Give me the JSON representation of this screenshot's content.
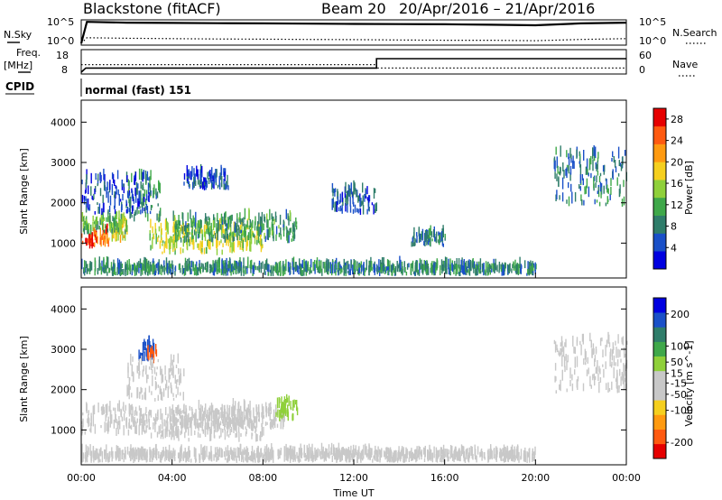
{
  "header": {
    "station": "Blackstone (fitACF)",
    "beam": "Beam 20",
    "dates": "20/Apr/2016 – 21/Apr/2016"
  },
  "top_panel": {
    "left_label": "N.Sky",
    "left_ticks": [
      "10^5",
      "10^0"
    ],
    "right_label": "N.Search",
    "right_ticks": [
      "10^5",
      "10^0"
    ]
  },
  "freq_panel": {
    "left_label_1": "Freq.",
    "left_label_2": "[MHz]",
    "left_ticks": [
      "18",
      "8"
    ],
    "right_label": "Nave",
    "right_ticks": [
      "60",
      "0"
    ],
    "cpid_label": "CPID",
    "cpid_value": "normal (fast) 151"
  },
  "colors": {
    "power": [
      "#0000e0",
      "#1a50c8",
      "#2f7d6a",
      "#3fa84a",
      "#8fd03a",
      "#f5cf1e",
      "#ff9a10",
      "#ff5a10",
      "#e60000"
    ],
    "velocity": [
      "#e60000",
      "#ff5a10",
      "#ff9a10",
      "#f5cf1e",
      "#c8c8c8",
      "#c8c8c8",
      "#8fd03a",
      "#3fa84a",
      "#2f7d6a",
      "#1a50c8",
      "#0000e0"
    ]
  },
  "chart_data": [
    {
      "type": "line",
      "panel": "noise",
      "series": [
        {
          "name": "N.Sky",
          "x": [
            0,
            0.25,
            2,
            4,
            6,
            8,
            10,
            12,
            14,
            16,
            18,
            20,
            22,
            24
          ],
          "values": [
            1,
            90000,
            60000,
            50000,
            45000,
            40000,
            35000,
            30000,
            28000,
            25000,
            20000,
            15000,
            40000,
            60000
          ]
        },
        {
          "name": "N.Search",
          "x": [
            0,
            0.25,
            2,
            4,
            6,
            8,
            10,
            12,
            14,
            16,
            18,
            20,
            22,
            24
          ],
          "values": [
            1,
            20,
            15,
            12,
            10,
            9,
            8,
            7,
            6,
            5,
            5,
            4,
            8,
            12
          ]
        }
      ],
      "ylim_left": [
        "10^0",
        "10^5"
      ],
      "ylim_right": [
        "10^0",
        "10^5"
      ]
    },
    {
      "type": "line",
      "panel": "frequency",
      "series": [
        {
          "name": "Freq.",
          "x": [
            0,
            0.2,
            13,
            13,
            24
          ],
          "values": [
            8,
            10,
            10,
            14.5,
            14.5
          ]
        },
        {
          "name": "Nave",
          "x": [
            0,
            13,
            13,
            24
          ],
          "values": [
            22,
            22,
            12,
            12
          ]
        }
      ],
      "ylim_left": [
        8,
        18
      ],
      "ylim_right": [
        0,
        60
      ]
    },
    {
      "type": "heatmap",
      "panel": "power",
      "ylabel": "Slant Range [km]",
      "colorbar_label": "Power [dB]",
      "colorbar_ticks": [
        4,
        8,
        12,
        16,
        20,
        24,
        28
      ],
      "clim": [
        0,
        30
      ],
      "xlim": [
        0,
        24
      ],
      "ylim": [
        180,
        4500
      ],
      "yticks": [
        1000,
        2000,
        3000,
        4000
      ],
      "regions": [
        {
          "t0": 0,
          "t1": 0.5,
          "r0": 850,
          "r1": 1150,
          "v": 28
        },
        {
          "t0": 0.5,
          "t1": 1.2,
          "r0": 900,
          "r1": 1250,
          "v": 24
        },
        {
          "t0": 1.2,
          "t1": 2.0,
          "r0": 1000,
          "r1": 1500,
          "v": 18
        },
        {
          "t0": 0,
          "t1": 2.0,
          "r0": 1200,
          "r1": 1600,
          "v": 12
        },
        {
          "t0": 2.0,
          "t1": 3.5,
          "r0": 1500,
          "r1": 2600,
          "v": 10
        },
        {
          "t0": 3.0,
          "t1": 8.0,
          "r0": 700,
          "r1": 1400,
          "v": 16
        },
        {
          "t0": 4.0,
          "t1": 9.5,
          "r0": 1000,
          "r1": 1600,
          "v": 10
        },
        {
          "t0": 0,
          "t1": 3.0,
          "r0": 1700,
          "r1": 2600,
          "v": 5
        },
        {
          "t0": 4.5,
          "t1": 6.5,
          "r0": 2300,
          "r1": 2700,
          "v": 5
        },
        {
          "t0": 20.8,
          "t1": 24,
          "r0": 1900,
          "r1": 3200,
          "v": 8
        },
        {
          "t0": 11.0,
          "t1": 13.0,
          "r0": 1700,
          "r1": 2300,
          "v": 6
        },
        {
          "t0": 14.5,
          "t1": 16.0,
          "r0": 900,
          "r1": 1200,
          "v": 8
        },
        {
          "t0": 0,
          "t1": 20.0,
          "r0": 180,
          "r1": 400,
          "v": 9
        }
      ]
    },
    {
      "type": "heatmap",
      "panel": "velocity",
      "ylabel": "Slant Range [km]",
      "xlabel": "Time UT",
      "xticks": [
        "00:00",
        "04:00",
        "08:00",
        "12:00",
        "16:00",
        "20:00",
        "00:00"
      ],
      "colorbar_label": "Velocity [m s^-1]",
      "colorbar_ticks": [
        -200,
        -100,
        -50,
        -15,
        15,
        50,
        100,
        200
      ],
      "clim": [
        -250,
        250
      ],
      "xlim": [
        0,
        24
      ],
      "ylim": [
        180,
        4500
      ],
      "yticks": [
        1000,
        2000,
        3000,
        4000
      ],
      "regions": [
        {
          "t0": 0,
          "t1": 3.0,
          "r0": 850,
          "r1": 1500,
          "v": 0
        },
        {
          "t0": 3.0,
          "t1": 8.0,
          "r0": 700,
          "r1": 1400,
          "v": -60
        },
        {
          "t0": 4.0,
          "t1": 9.0,
          "r0": 1000,
          "r1": 1500,
          "v": 0
        },
        {
          "t0": 8.5,
          "t1": 9.5,
          "r0": 1200,
          "r1": 1700,
          "v": 60
        },
        {
          "t0": 2.5,
          "t1": 3.2,
          "r0": 2700,
          "r1": 3100,
          "v": 200
        },
        {
          "t0": 2.9,
          "t1": 3.3,
          "r0": 2600,
          "r1": 2900,
          "v": -200
        },
        {
          "t0": 2.0,
          "t1": 4.5,
          "r0": 1700,
          "r1": 2700,
          "v": -30
        },
        {
          "t0": 20.8,
          "t1": 24,
          "r0": 1900,
          "r1": 3200,
          "v": 0
        },
        {
          "t0": 0,
          "t1": 20.0,
          "r0": 180,
          "r1": 400,
          "v": -40
        }
      ]
    }
  ]
}
